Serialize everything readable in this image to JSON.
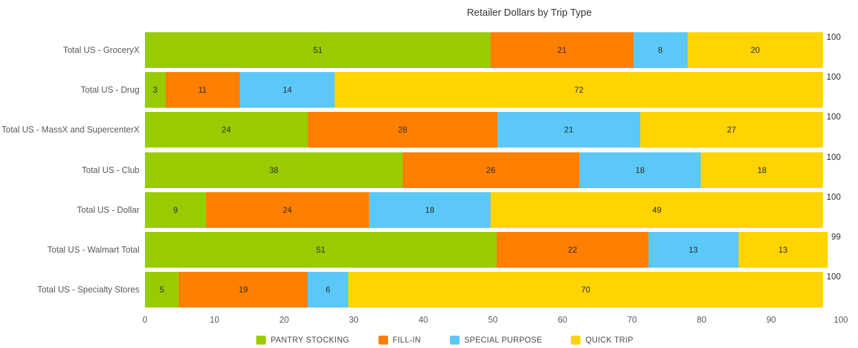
{
  "title": "Retailer Dollars by Trip Type",
  "chart_data": {
    "type": "bar",
    "orientation": "horizontal",
    "stacked": true,
    "title": "Retailer Dollars by Trip Type",
    "categories": [
      "Total US - GroceryX",
      "Total US - Drug",
      "Total US - MassX and SupercenterX",
      "Total US - Club",
      "Total US - Dollar",
      "Total US - Walmart Total",
      "Total US - Specialty Stores"
    ],
    "series": [
      {
        "name": "PANTRY STOCKING",
        "color": "#99cc00",
        "values": [
          51,
          3,
          24,
          38,
          9,
          51,
          5
        ]
      },
      {
        "name": "FILL-IN",
        "color": "#ff7f00",
        "values": [
          21,
          11,
          28,
          26,
          24,
          22,
          19
        ]
      },
      {
        "name": "SPECIAL PURPOSE",
        "color": "#5bc8f7",
        "values": [
          8,
          14,
          21,
          18,
          18,
          13,
          6
        ]
      },
      {
        "name": "QUICK TRIP",
        "color": "#ffd400",
        "values": [
          20,
          72,
          27,
          18,
          49,
          13,
          70
        ]
      }
    ],
    "totals": [
      100,
      100,
      100,
      100,
      100,
      99,
      100
    ],
    "x_ticks": [
      0,
      10,
      20,
      30,
      40,
      50,
      60,
      70,
      80,
      90,
      100
    ],
    "xlim": [
      0,
      100
    ],
    "grid": false,
    "legend_position": "bottom"
  }
}
